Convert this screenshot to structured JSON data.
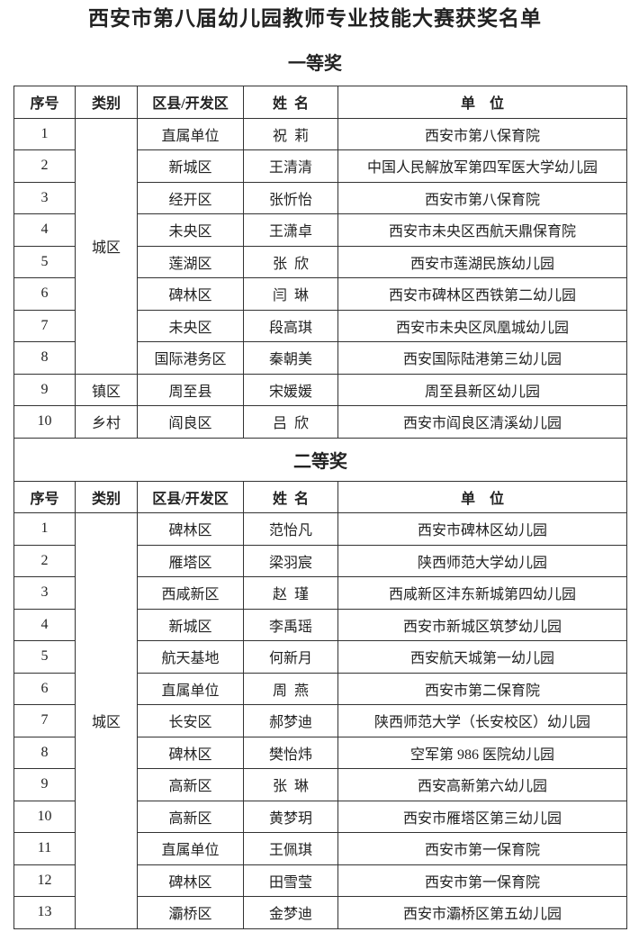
{
  "title": "西安市第八届幼儿园教师专业技能大赛获奖名单",
  "headers": [
    "序号",
    "类别",
    "区县/开发区",
    "姓  名",
    "单    位"
  ],
  "sections": [
    {
      "heading": "一等奖",
      "groups": [
        {
          "category": "城区",
          "rows": [
            [
              "1",
              "直属单位",
              "祝  莉",
              "西安市第八保育院"
            ],
            [
              "2",
              "新城区",
              "王清清",
              "中国人民解放军第四军医大学幼儿园"
            ],
            [
              "3",
              "经开区",
              "张忻怡",
              "西安市第八保育院"
            ],
            [
              "4",
              "未央区",
              "王潇卓",
              "西安市未央区西航天鼎保育院"
            ],
            [
              "5",
              "莲湖区",
              "张  欣",
              "西安市莲湖民族幼儿园"
            ],
            [
              "6",
              "碑林区",
              "闫  琳",
              "西安市碑林区西铁第二幼儿园"
            ],
            [
              "7",
              "未央区",
              "段高琪",
              "西安市未央区凤凰城幼儿园"
            ],
            [
              "8",
              "国际港务区",
              "秦朝美",
              "西安国际陆港第三幼儿园"
            ]
          ]
        },
        {
          "category": "镇区",
          "rows": [
            [
              "9",
              "周至县",
              "宋媛媛",
              "周至县新区幼儿园"
            ]
          ]
        },
        {
          "category": "乡村",
          "rows": [
            [
              "10",
              "阎良区",
              "吕  欣",
              "西安市阎良区清溪幼儿园"
            ]
          ]
        }
      ]
    },
    {
      "heading": "二等奖",
      "groups": [
        {
          "category": "城区",
          "rows": [
            [
              "1",
              "碑林区",
              "范怡凡",
              "西安市碑林区幼儿园"
            ],
            [
              "2",
              "雁塔区",
              "梁羽宸",
              "陕西师范大学幼儿园"
            ],
            [
              "3",
              "西咸新区",
              "赵  瑾",
              "西咸新区沣东新城第四幼儿园"
            ],
            [
              "4",
              "新城区",
              "李禹瑶",
              "西安市新城区筑梦幼儿园"
            ],
            [
              "5",
              "航天基地",
              "何新月",
              "西安航天城第一幼儿园"
            ],
            [
              "6",
              "直属单位",
              "周  燕",
              "西安市第二保育院"
            ],
            [
              "7",
              "长安区",
              "郝梦迪",
              "陕西师范大学（长安校区）幼儿园"
            ],
            [
              "8",
              "碑林区",
              "樊怡炜",
              "空军第 986 医院幼儿园"
            ],
            [
              "9",
              "高新区",
              "张  琳",
              "西安高新第六幼儿园"
            ],
            [
              "10",
              "高新区",
              "黄梦玥",
              "西安市雁塔区第三幼儿园"
            ],
            [
              "11",
              "直属单位",
              "王佩琪",
              "西安市第一保育院"
            ],
            [
              "12",
              "碑林区",
              "田雪莹",
              "西安市第一保育院"
            ],
            [
              "13",
              "灞桥区",
              "金梦迪",
              "西安市灞桥区第五幼儿园"
            ]
          ]
        }
      ]
    }
  ]
}
